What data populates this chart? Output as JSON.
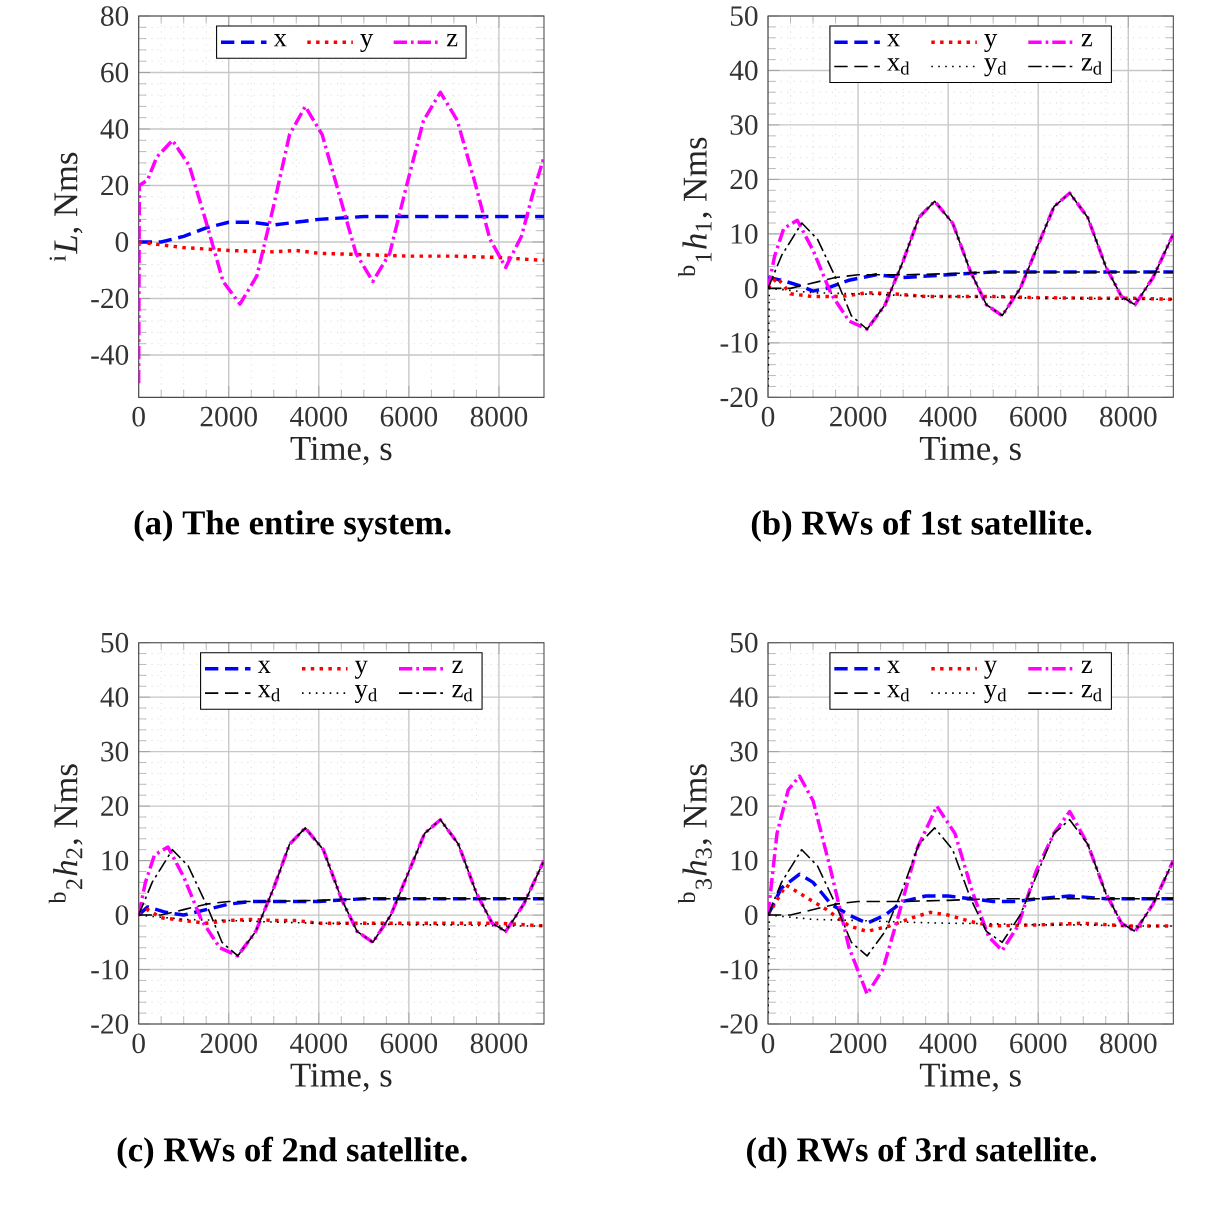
{
  "chart_data": [
    {
      "type": "line",
      "title": "(a) The entire system.",
      "xlabel": "Time, s",
      "ylabel": "$^{i}$*L*, Nms",
      "xlim": [
        0,
        9000
      ],
      "ylim": [
        -55,
        80
      ],
      "xticks": [
        0,
        2000,
        4000,
        6000,
        8000
      ],
      "yticks": [
        -40,
        -20,
        0,
        20,
        40,
        60,
        80
      ],
      "grid": true,
      "legend": "top",
      "series": [
        {
          "name": "x",
          "color": "#0000ff",
          "line_style": "dashed",
          "x": [
            0,
            500,
            1000,
            1500,
            2000,
            2500,
            3000,
            3500,
            4000,
            5000,
            6000,
            7000,
            8000,
            9000
          ],
          "values": [
            0,
            0,
            2,
            5,
            7,
            7,
            6,
            7,
            8,
            9,
            9,
            9,
            9,
            9
          ]
        },
        {
          "name": "y",
          "color": "#ff0000",
          "line_style": "dotted",
          "x": [
            0,
            1000,
            2000,
            3000,
            3500,
            4000,
            5000,
            6000,
            7000,
            8000,
            9000
          ],
          "values": [
            0,
            -2,
            -3,
            -3.5,
            -3,
            -4,
            -4.5,
            -5,
            -5,
            -5.5,
            -6.5
          ]
        },
        {
          "name": "z",
          "color": "#ff00ff",
          "line_style": "dashdot",
          "x": [
            0,
            15,
            200,
            400,
            750,
            1125,
            1500,
            1875,
            2250,
            2625,
            3000,
            3350,
            3700,
            4075,
            4450,
            4825,
            5200,
            5575,
            5950,
            6325,
            6700,
            7075,
            7450,
            7800,
            8150,
            8500,
            8750,
            9000
          ],
          "values": [
            -50,
            20,
            22,
            30,
            36,
            27,
            7,
            -14,
            -22,
            -12,
            13,
            38,
            48,
            38,
            17,
            -4,
            -14,
            -4,
            20,
            43,
            53,
            43,
            22,
            1,
            -9,
            2,
            17,
            30
          ]
        }
      ]
    },
    {
      "type": "line",
      "title": "(b) RWs of 1st satellite.",
      "xlabel": "Time, s",
      "ylabel": "$^{b}$$_{1}$*h*$_{1}$, Nms",
      "xlim": [
        0,
        9000
      ],
      "ylim": [
        -20,
        50
      ],
      "xticks": [
        0,
        2000,
        4000,
        6000,
        8000
      ],
      "yticks": [
        -20,
        -10,
        0,
        10,
        20,
        30,
        40,
        50
      ],
      "grid": true,
      "legend": "top",
      "series": [
        {
          "name": "x",
          "color": "#0000ff",
          "line_style": "dashed",
          "x": [
            0,
            300,
            700,
            1000,
            1300,
            1800,
            2400,
            3000,
            4000,
            5000,
            6000,
            7000,
            8000,
            9000
          ],
          "values": [
            2,
            1.5,
            0.5,
            -0.5,
            0,
            1.5,
            2.5,
            2,
            2.5,
            3,
            3,
            3,
            3,
            3
          ]
        },
        {
          "name": "y",
          "color": "#ff0000",
          "line_style": "dotted",
          "x": [
            0,
            200,
            500,
            1000,
            1600,
            2200,
            2800,
            3500,
            5000,
            6000,
            7000,
            8000,
            9000
          ],
          "values": [
            0,
            2,
            -1,
            -1.5,
            -1.5,
            -0.8,
            -1,
            -1.5,
            -1.5,
            -1.7,
            -1.8,
            -1.8,
            -2
          ]
        },
        {
          "name": "z",
          "color": "#ff00ff",
          "line_style": "dashdot",
          "x": [
            0,
            150,
            350,
            650,
            1000,
            1400,
            1800,
            2200,
            2600,
            3000,
            3350,
            3700,
            4100,
            4500,
            4850,
            5200,
            5600,
            6000,
            6350,
            6700,
            7100,
            7500,
            7850,
            8150,
            8550,
            9000
          ],
          "values": [
            0,
            6,
            11,
            12.5,
            7,
            -1,
            -6,
            -7.5,
            -3,
            5,
            13,
            16,
            12,
            3,
            -3,
            -5,
            0,
            8,
            15,
            17.5,
            13,
            4,
            -1.5,
            -3,
            2,
            10
          ]
        },
        {
          "name": "x$_{d}$",
          "color": "#000000",
          "line_style": "dashed",
          "x": [
            0,
            500,
            1000,
            1500,
            2000,
            3000,
            4000,
            5000,
            6000,
            7000,
            8000,
            9000
          ],
          "values": [
            0,
            0,
            1,
            2,
            2.5,
            2.5,
            2.7,
            3,
            3,
            3,
            3,
            3
          ]
        },
        {
          "name": "y$_{d}$",
          "color": "#000000",
          "line_style": "dotted",
          "x": [
            0,
            30,
            1000,
            2000,
            3000,
            4000,
            5000,
            6000,
            7000,
            8000,
            9000
          ],
          "values": [
            -18,
            0,
            -0.8,
            -1,
            -1.3,
            -1.5,
            -1.6,
            -1.8,
            -1.8,
            -2,
            -2
          ]
        },
        {
          "name": "z$_{d}$",
          "color": "#000000",
          "line_style": "dashdot",
          "x": [
            0,
            300,
            750,
            1100,
            1500,
            1850,
            2200,
            2600,
            3000,
            3350,
            3700,
            4100,
            4500,
            4850,
            5200,
            5600,
            6000,
            6350,
            6700,
            7100,
            7500,
            7850,
            8150,
            8550,
            9000
          ],
          "values": [
            0,
            6,
            12,
            9,
            2,
            -5,
            -7.5,
            -3,
            5,
            13,
            16,
            12,
            3,
            -3,
            -5,
            0,
            8,
            15,
            17.5,
            13,
            4,
            -1.5,
            -3,
            2,
            10
          ]
        }
      ]
    },
    {
      "type": "line",
      "title": "(c) RWs of 2nd satellite.",
      "xlabel": "Time, s",
      "ylabel": "$^{b}$$_{2}$*h*$_{2}$, Nms",
      "xlim": [
        0,
        9000
      ],
      "ylim": [
        -20,
        50
      ],
      "xticks": [
        0,
        2000,
        4000,
        6000,
        8000
      ],
      "yticks": [
        -20,
        -10,
        0,
        10,
        20,
        30,
        40,
        50
      ],
      "grid": true,
      "legend": "top",
      "series": [
        {
          "name": "x",
          "color": "#0000ff",
          "line_style": "dashed",
          "x": [
            0,
            200,
            600,
            1000,
            1500,
            2000,
            2500,
            3000,
            4000,
            5000,
            6000,
            7000,
            8000,
            9000
          ],
          "values": [
            0,
            1.5,
            0.5,
            0,
            1,
            2,
            2.5,
            2.5,
            2.5,
            3,
            3,
            3,
            3,
            3
          ]
        },
        {
          "name": "y",
          "color": "#ff0000",
          "line_style": "dotted",
          "x": [
            0,
            200,
            500,
            1000,
            1500,
            2000,
            2500,
            3000,
            3500,
            4000,
            6000,
            8000,
            9000
          ],
          "values": [
            0,
            1,
            -0.5,
            -1,
            -1.5,
            -1,
            -0.8,
            -1,
            -1,
            -1.5,
            -1.5,
            -1.5,
            -2
          ]
        },
        {
          "name": "z",
          "color": "#ff00ff",
          "line_style": "dashdot",
          "x": [
            0,
            150,
            350,
            650,
            1000,
            1400,
            1800,
            2200,
            2600,
            3000,
            3350,
            3700,
            4100,
            4500,
            4850,
            5200,
            5600,
            6000,
            6350,
            6700,
            7100,
            7500,
            7850,
            8150,
            8550,
            9000
          ],
          "values": [
            0,
            6,
            11,
            12.5,
            7,
            -1,
            -6,
            -7.5,
            -3,
            5,
            13,
            16,
            12,
            3,
            -3,
            -5,
            0,
            8,
            15,
            17.5,
            13,
            4,
            -1.5,
            -3,
            2,
            10
          ]
        },
        {
          "name": "x$_{d}$",
          "color": "#000000",
          "line_style": "dashed",
          "x": [
            0,
            500,
            1000,
            1500,
            2000,
            3000,
            4000,
            5000,
            6000,
            7000,
            8000,
            9000
          ],
          "values": [
            0,
            0,
            1,
            2,
            2.5,
            2.5,
            2.7,
            3,
            3,
            3,
            3,
            3
          ]
        },
        {
          "name": "y$_{d}$",
          "color": "#000000",
          "line_style": "dotted",
          "x": [
            0,
            1000,
            2000,
            3000,
            4000,
            5000,
            6000,
            7000,
            8000,
            9000
          ],
          "values": [
            0,
            -0.8,
            -1,
            -1.3,
            -1.5,
            -1.6,
            -1.8,
            -1.8,
            -2,
            -2
          ]
        },
        {
          "name": "z$_{d}$",
          "color": "#000000",
          "line_style": "dashdot",
          "x": [
            0,
            300,
            750,
            1100,
            1500,
            1850,
            2200,
            2600,
            3000,
            3350,
            3700,
            4100,
            4500,
            4850,
            5200,
            5600,
            6000,
            6350,
            6700,
            7100,
            7500,
            7850,
            8150,
            8550,
            9000
          ],
          "values": [
            0,
            6,
            12,
            9,
            2,
            -5,
            -7.5,
            -3,
            5,
            13,
            16,
            12,
            3,
            -3,
            -5,
            0,
            8,
            15,
            17.5,
            13,
            4,
            -1.5,
            -3,
            2,
            10
          ]
        }
      ]
    },
    {
      "type": "line",
      "title": "(d) RWs of 3rd satellite.",
      "xlabel": "Time, s",
      "ylabel": "$^{b}$$_{3}$*h*$_{3}$, Nms",
      "xlim": [
        0,
        9000
      ],
      "ylim": [
        -20,
        50
      ],
      "xticks": [
        0,
        2000,
        4000,
        6000,
        8000
      ],
      "yticks": [
        -20,
        -10,
        0,
        10,
        20,
        30,
        40,
        50
      ],
      "grid": true,
      "legend": "top",
      "series": [
        {
          "name": "x",
          "color": "#0000ff",
          "line_style": "dashed",
          "x": [
            0,
            300,
            700,
            1000,
            1400,
            1800,
            2200,
            2600,
            3000,
            3500,
            4000,
            4500,
            5000,
            5500,
            6000,
            6700,
            7500,
            8000,
            9000
          ],
          "values": [
            0,
            5,
            7.5,
            6,
            2,
            0,
            -1.5,
            0,
            2.5,
            3.5,
            3.5,
            3,
            2.5,
            2.5,
            3,
            3.5,
            3,
            3,
            3
          ]
        },
        {
          "name": "y",
          "color": "#ff0000",
          "line_style": "dotted",
          "x": [
            0,
            400,
            800,
            1300,
            1800,
            2200,
            2700,
            3200,
            3600,
            4000,
            4500,
            5000,
            6000,
            7000,
            8000,
            9000
          ],
          "values": [
            0,
            5.5,
            3.5,
            1,
            -2,
            -3,
            -2,
            -0.5,
            0.5,
            0,
            -1.2,
            -2,
            -1.8,
            -1.5,
            -2,
            -2
          ]
        },
        {
          "name": "z",
          "color": "#ff00ff",
          "line_style": "dashdot",
          "x": [
            0,
            200,
            450,
            700,
            1000,
            1400,
            1800,
            2200,
            2550,
            2900,
            3300,
            3750,
            4150,
            4550,
            4900,
            5200,
            5550,
            5950,
            6350,
            6700,
            7100,
            7500,
            7850,
            8150,
            8550,
            9000
          ],
          "values": [
            0,
            15,
            23,
            25.5,
            21,
            8,
            -6,
            -14.5,
            -10,
            0,
            12,
            20,
            15,
            4,
            -4,
            -6.5,
            -2,
            8,
            15,
            19,
            13,
            4,
            -1.5,
            -3,
            2,
            10
          ]
        },
        {
          "name": "x$_{d}$",
          "color": "#000000",
          "line_style": "dashed",
          "x": [
            0,
            500,
            1000,
            1500,
            2000,
            3000,
            4000,
            5000,
            6000,
            7000,
            8000,
            9000
          ],
          "values": [
            0,
            0,
            1,
            2,
            2.5,
            2.5,
            2.7,
            3,
            3,
            3,
            3,
            3
          ]
        },
        {
          "name": "y$_{d}$",
          "color": "#000000",
          "line_style": "dotted",
          "x": [
            0,
            30,
            1000,
            2000,
            3000,
            4000,
            5000,
            6000,
            7000,
            8000,
            9000
          ],
          "values": [
            -18,
            0,
            -0.8,
            -1,
            -1.3,
            -1.5,
            -1.6,
            -1.8,
            -1.8,
            -2,
            -2
          ]
        },
        {
          "name": "z$_{d}$",
          "color": "#000000",
          "line_style": "dashdot",
          "x": [
            0,
            300,
            750,
            1100,
            1500,
            1850,
            2200,
            2600,
            3000,
            3350,
            3700,
            4100,
            4500,
            4850,
            5200,
            5600,
            6000,
            6350,
            6700,
            7100,
            7500,
            7850,
            8150,
            8550,
            9000
          ],
          "values": [
            0,
            6,
            12,
            9,
            2,
            -5,
            -7.5,
            -3,
            5,
            13,
            16,
            12,
            3,
            -3,
            -5,
            0,
            8,
            15,
            17.5,
            13,
            4,
            -1.5,
            -3,
            2,
            10
          ]
        }
      ]
    }
  ]
}
